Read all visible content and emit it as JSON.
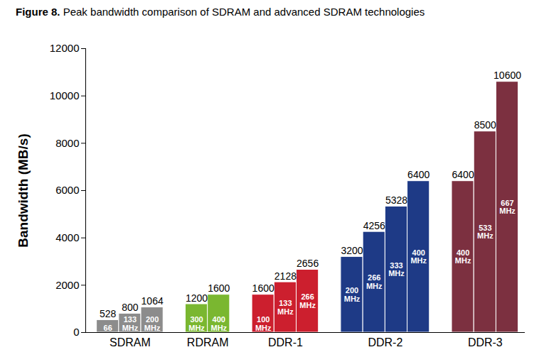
{
  "chart_data": {
    "type": "bar",
    "title": "Figure 8. Peak bandwidth comparison of SDRAM and advanced SDRAM technologies",
    "y_label": "Bandwidth (MB/s)",
    "categories": [
      "SDRAM",
      "RDRAM",
      "DDR-1",
      "DDR-2",
      "DDR-3"
    ],
    "groups": [
      {
        "color": "#8c8c8c",
        "values": [
          528,
          800,
          1064
        ],
        "bar_labels": [
          "66",
          "133 MHz",
          "200 MHz"
        ]
      },
      {
        "color": "#7ab730",
        "values": [
          1200,
          1600
        ],
        "bar_labels": [
          "300 MHz",
          "400 MHz"
        ]
      },
      {
        "color": "#cc1f2e",
        "values": [
          1600,
          2128,
          2656
        ],
        "bar_labels": [
          "100 MHz",
          "133 MHz",
          "266 MHz"
        ]
      },
      {
        "color": "#1e3a86",
        "values": [
          3200,
          4256,
          5328,
          6400
        ],
        "bar_labels": [
          "200 MHz",
          "266 MHz",
          "333 MHz",
          "400 MHz"
        ]
      },
      {
        "color": "#7c3040",
        "values": [
          6400,
          8500,
          10600
        ],
        "bar_labels": [
          "400 MHz",
          "533 MHz",
          "667 MHz"
        ]
      }
    ],
    "ylim": [
      0,
      12000
    ],
    "yticks": [
      0,
      2000,
      4000,
      6000,
      8000,
      10000,
      12000
    ],
    "grid": false,
    "data_labels": true
  }
}
